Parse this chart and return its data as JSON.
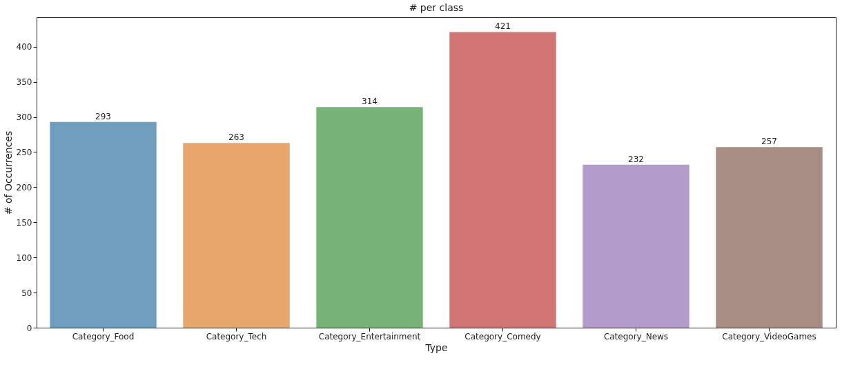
{
  "chart_data": {
    "type": "bar",
    "title": "# per class",
    "xlabel": "Type",
    "ylabel": "# of Occurrences",
    "categories": [
      "Category_Food",
      "Category_Tech",
      "Category_Entertainment",
      "Category_Comedy",
      "Category_News",
      "Category_VideoGames"
    ],
    "values": [
      293,
      263,
      314,
      421,
      232,
      257
    ],
    "colors": [
      "#6f9ebf",
      "#e6a66c",
      "#77b277",
      "#d07574",
      "#b29cc9",
      "#a88d85"
    ],
    "ylim": [
      0,
      442
    ],
    "yticks": [
      0,
      50,
      100,
      150,
      200,
      250,
      300,
      350,
      400
    ],
    "data_labels": true
  }
}
